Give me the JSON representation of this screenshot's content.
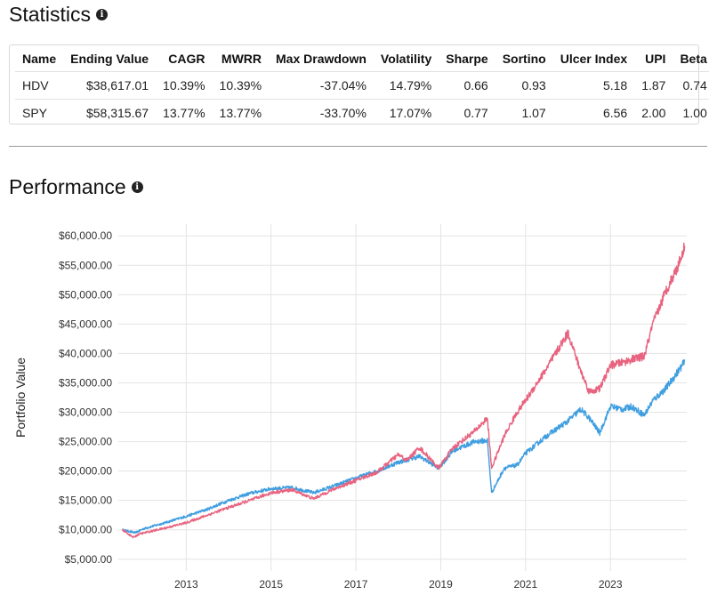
{
  "statistics": {
    "title": "Statistics",
    "info_icon": "info-icon",
    "columns": [
      "Name",
      "Ending Value",
      "CAGR",
      "MWRR",
      "Max Drawdown",
      "Volatility",
      "Sharpe",
      "Sortino",
      "Ulcer Index",
      "UPI",
      "Beta"
    ],
    "rows": [
      [
        "HDV",
        "$38,617.01",
        "10.39%",
        "10.39%",
        "-37.04%",
        "14.79%",
        "0.66",
        "0.93",
        "5.18",
        "1.87",
        "0.74"
      ],
      [
        "SPY",
        "$58,315.67",
        "13.77%",
        "13.77%",
        "-33.70%",
        "17.07%",
        "0.77",
        "1.07",
        "6.56",
        "2.00",
        "1.00"
      ]
    ]
  },
  "performance": {
    "title": "Performance",
    "info_icon": "info-icon"
  },
  "chart_data": {
    "type": "line",
    "ylabel": "Portfolio Value",
    "xlabel": "",
    "xlim": [
      2011.4,
      2024.8
    ],
    "ylim": [
      3000,
      62000
    ],
    "yticks": [
      5000,
      10000,
      15000,
      20000,
      25000,
      30000,
      35000,
      40000,
      45000,
      50000,
      55000,
      60000
    ],
    "ytick_labels": [
      "$5,000.00",
      "$10,000.00",
      "$15,000.00",
      "$20,000.00",
      "$25,000.00",
      "$30,000.00",
      "$35,000.00",
      "$40,000.00",
      "$45,000.00",
      "$50,000.00",
      "$55,000.00",
      "$60,000.00"
    ],
    "xticks": [
      2013,
      2015,
      2017,
      2019,
      2021,
      2023
    ],
    "xtick_labels": [
      "2013",
      "2015",
      "2017",
      "2019",
      "2021",
      "2023"
    ],
    "grid": true,
    "series": [
      {
        "name": "HDV",
        "color": "#3f9ee0",
        "x": [
          2011.5,
          2011.8,
          2012.0,
          2012.5,
          2013.0,
          2013.5,
          2014.0,
          2014.5,
          2015.0,
          2015.5,
          2016.0,
          2016.5,
          2017.0,
          2017.5,
          2018.0,
          2018.5,
          2018.95,
          2019.3,
          2019.8,
          2020.1,
          2020.2,
          2020.5,
          2020.8,
          2021.0,
          2021.5,
          2022.0,
          2022.3,
          2022.5,
          2022.75,
          2023.0,
          2023.3,
          2023.5,
          2023.8,
          2024.0,
          2024.3,
          2024.6,
          2024.75
        ],
        "y": [
          10000,
          9500,
          10200,
          11200,
          12300,
          13500,
          15000,
          16200,
          17000,
          17200,
          16300,
          17500,
          18800,
          20000,
          21500,
          22500,
          20500,
          23500,
          25000,
          25200,
          16300,
          20500,
          21000,
          23000,
          26000,
          28500,
          30500,
          29000,
          26500,
          31000,
          30500,
          31000,
          29500,
          32000,
          34000,
          37000,
          38600
        ]
      },
      {
        "name": "SPY",
        "color": "#e8637f",
        "x": [
          2011.5,
          2011.75,
          2011.9,
          2012.5,
          2013.0,
          2013.5,
          2014.0,
          2014.5,
          2015.0,
          2015.5,
          2016.0,
          2016.5,
          2017.0,
          2017.5,
          2018.0,
          2018.2,
          2018.5,
          2018.95,
          2019.3,
          2019.8,
          2020.1,
          2020.2,
          2020.5,
          2020.8,
          2021.0,
          2021.5,
          2022.0,
          2022.3,
          2022.5,
          2022.75,
          2023.0,
          2023.3,
          2023.5,
          2023.8,
          2024.0,
          2024.3,
          2024.6,
          2024.75
        ],
        "y": [
          10000,
          8700,
          9300,
          10300,
          11200,
          12500,
          13800,
          15000,
          16300,
          16800,
          15300,
          17000,
          18400,
          19800,
          22800,
          21800,
          24000,
          20500,
          24000,
          26800,
          29000,
          20500,
          26000,
          30000,
          32000,
          37500,
          43500,
          37000,
          33500,
          34000,
          38000,
          38500,
          39000,
          39500,
          45000,
          50500,
          55000,
          58300
        ]
      }
    ]
  }
}
